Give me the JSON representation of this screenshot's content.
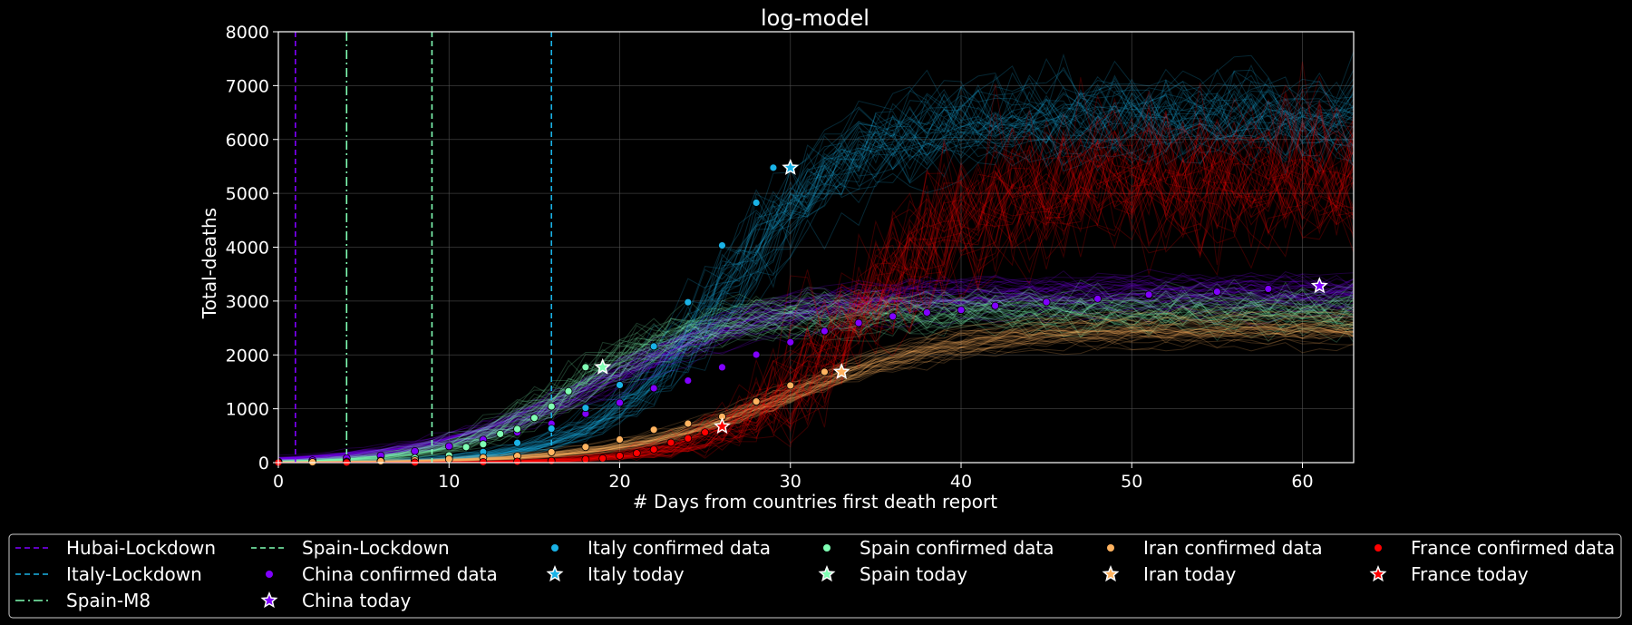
{
  "chart_data": {
    "type": "line",
    "title": "log-model",
    "xlabel": "# Days from countries first death report",
    "ylabel": "Total-deaths",
    "xlim": [
      0,
      63
    ],
    "ylim": [
      0,
      8000
    ],
    "x_ticks": [
      0,
      10,
      20,
      30,
      40,
      50,
      60
    ],
    "y_ticks": [
      0,
      1000,
      2000,
      3000,
      4000,
      5000,
      6000,
      7000,
      8000
    ],
    "grid": true,
    "legend_position": "below",
    "vlines": [
      {
        "name": "Hubai-Lockdown",
        "x": 1,
        "color": "#8000ff",
        "style": "dashed"
      },
      {
        "name": "Italy-Lockdown",
        "x": 16,
        "color": "#1ab2e6",
        "style": "dashed"
      },
      {
        "name": "Spain-M8",
        "x": 4,
        "color": "#80ffb4",
        "style": "dashdot"
      },
      {
        "name": "Spain-Lockdown",
        "x": 9,
        "color": "#80ffb4",
        "style": "dashed"
      }
    ],
    "series": [
      {
        "name": "China confirmed data",
        "today_label": "China today",
        "color": "#8000ff",
        "x": [
          0,
          2,
          4,
          6,
          8,
          10,
          12,
          14,
          16,
          18,
          20,
          22,
          24,
          26,
          28,
          30,
          32,
          34,
          36,
          38,
          40,
          42,
          45,
          48,
          51,
          55,
          58,
          61
        ],
        "y": [
          17,
          41,
          80,
          131,
          213,
          304,
          425,
          563,
          722,
          908,
          1113,
          1381,
          1523,
          1770,
          2004,
          2236,
          2442,
          2595,
          2715,
          2788,
          2835,
          2912,
          2981,
          3042,
          3119,
          3173,
          3226,
          3281
        ],
        "today": {
          "x": 61,
          "y": 3281
        }
      },
      {
        "name": "Italy confirmed data",
        "today_label": "Italy today",
        "color": "#1ab2e6",
        "x": [
          0,
          2,
          4,
          6,
          8,
          10,
          12,
          14,
          16,
          18,
          20,
          22,
          24,
          26,
          28,
          29,
          30
        ],
        "y": [
          1,
          3,
          11,
          29,
          52,
          107,
          197,
          366,
          631,
          1016,
          1441,
          2158,
          2978,
          4032,
          4825,
          5476,
          5476
        ],
        "today": {
          "x": 30,
          "y": 5476
        }
      },
      {
        "name": "Spain confirmed data",
        "today_label": "Spain today",
        "color": "#80ffb4",
        "x": [
          0,
          2,
          4,
          6,
          8,
          10,
          11,
          12,
          13,
          14,
          15,
          16,
          17,
          18,
          19
        ],
        "y": [
          1,
          5,
          17,
          35,
          84,
          136,
          289,
          342,
          533,
          623,
          830,
          1043,
          1326,
          1772,
          1772
        ],
        "today": {
          "x": 19,
          "y": 1772
        }
      },
      {
        "name": "Iran confirmed data",
        "today_label": "Iran today",
        "color": "#ffb360",
        "x": [
          0,
          2,
          4,
          6,
          8,
          10,
          12,
          14,
          16,
          18,
          20,
          22,
          24,
          26,
          28,
          30,
          32,
          33
        ],
        "y": [
          2,
          8,
          16,
          26,
          43,
          66,
          92,
          124,
          194,
          291,
          429,
          611,
          724,
          853,
          1135,
          1433,
          1685,
          1685
        ],
        "today": {
          "x": 33,
          "y": 1685
        }
      },
      {
        "name": "France confirmed data",
        "today_label": "France today",
        "color": "#ff0000",
        "x": [
          0,
          4,
          8,
          12,
          14,
          16,
          18,
          19,
          20,
          21,
          22,
          23,
          24,
          25,
          26
        ],
        "y": [
          1,
          2,
          3,
          11,
          19,
          33,
          61,
          79,
          127,
          175,
          244,
          372,
          450,
          562,
          674
        ],
        "today": {
          "x": 26,
          "y": 674
        }
      }
    ],
    "simulation_bands": [
      {
        "name": "Italy",
        "color": "#1ab2e6",
        "K": 6400,
        "x0": 26,
        "k": 0.27,
        "noise": 500,
        "x_end": 63
      },
      {
        "name": "China",
        "color": "#8000ff",
        "K": 3150,
        "x0": 19.5,
        "k": 0.2,
        "noise": 120,
        "x_end": 63
      },
      {
        "name": "Spain",
        "color": "#80ffb4",
        "K": 2800,
        "x0": 17.5,
        "k": 0.28,
        "noise": 250,
        "x_end": 63
      },
      {
        "name": "Iran",
        "color": "#ffb360",
        "K": 2500,
        "x0": 30,
        "k": 0.2,
        "noise": 90,
        "x_end": 63
      },
      {
        "name": "France",
        "color": "#ff0000",
        "K": 5200,
        "x0": 33.5,
        "k": 0.28,
        "noise": 1100,
        "x_end": 63
      }
    ]
  }
}
